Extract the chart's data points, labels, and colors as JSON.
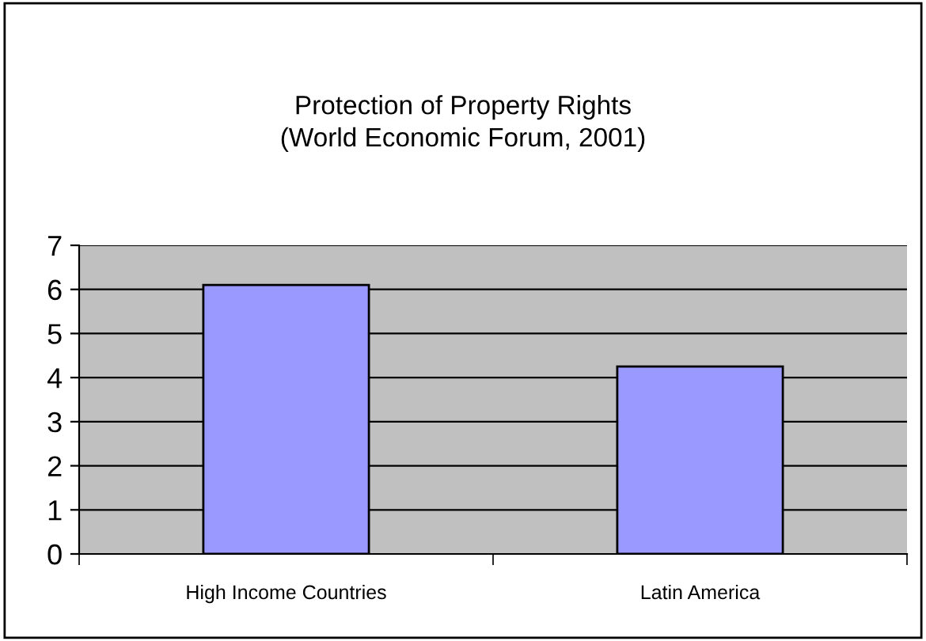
{
  "chart_data": {
    "type": "bar",
    "title": "Protection of Property Rights\n(World Economic Forum, 2001)",
    "categories": [
      "High Income Countries",
      "Latin America"
    ],
    "values": [
      6.1,
      4.25
    ],
    "color": "#9999ff",
    "ylim": [
      0,
      7
    ],
    "yticks": [
      0,
      1,
      2,
      3,
      4,
      5,
      6,
      7
    ],
    "grid": "y",
    "legend": false
  }
}
